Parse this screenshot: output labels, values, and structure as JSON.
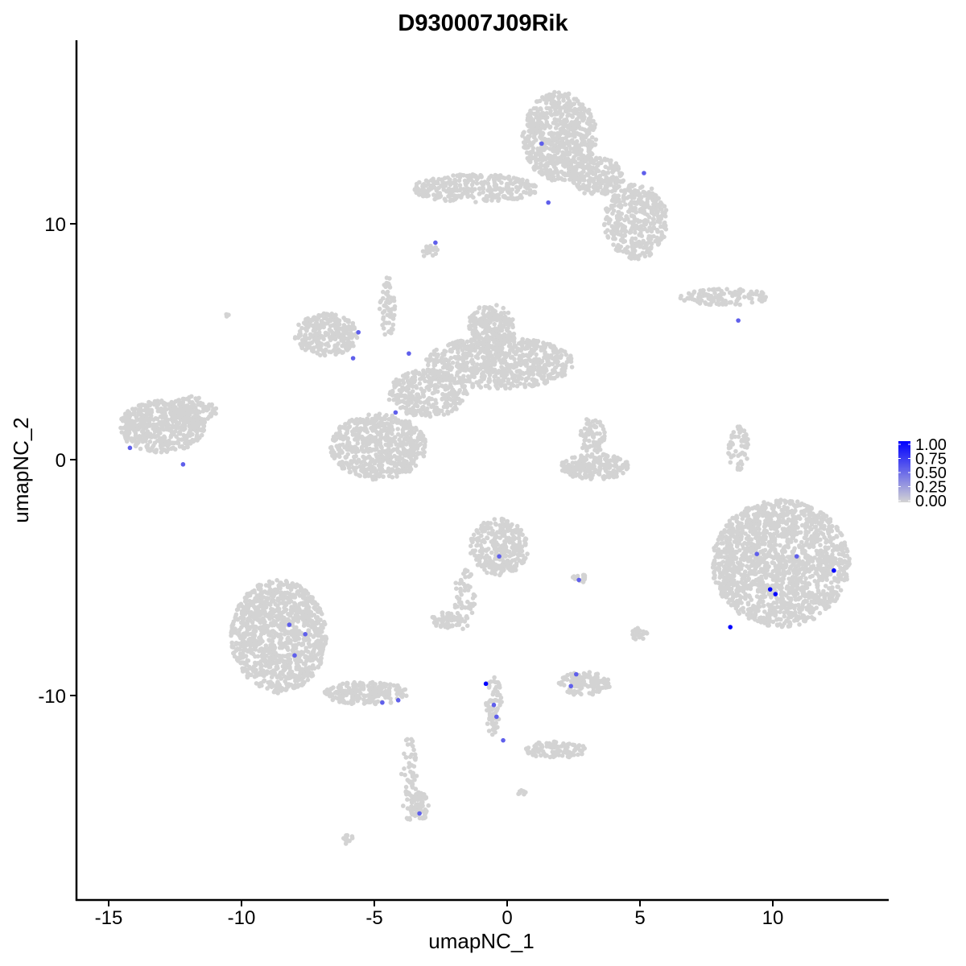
{
  "chart_data": {
    "type": "scatter",
    "title": "D930007J09Rik",
    "xlabel": "umapNC_1",
    "ylabel": "umapNC_2",
    "xlim": [
      -16.2,
      14.3
    ],
    "ylim": [
      -18.7,
      17.8
    ],
    "xticks": [
      -15,
      -10,
      -5,
      0,
      5,
      10
    ],
    "yticks": [
      -10,
      0,
      10
    ],
    "grid": false,
    "color_scale": {
      "low": "#d3d3d3",
      "high": "#0000ff",
      "min": 0,
      "max": 1
    },
    "legend": {
      "placement": "right",
      "labels": [
        "1.00",
        "0.75",
        "0.50",
        "0.25",
        "0.00"
      ]
    },
    "background_clusters": [
      {
        "cx": 1.97,
        "cy": 13.7,
        "rx": 1.4,
        "ry": 1.9,
        "n": 700
      },
      {
        "cx": 4.85,
        "cy": 10.1,
        "rx": 1.2,
        "ry": 1.6,
        "n": 380
      },
      {
        "cx": 3.4,
        "cy": 12.0,
        "rx": 1.0,
        "ry": 0.8,
        "n": 200
      },
      {
        "cx": -1.2,
        "cy": 11.5,
        "rx": 2.4,
        "ry": 0.6,
        "n": 300
      },
      {
        "cx": -2.9,
        "cy": 8.8,
        "rx": 0.3,
        "ry": 0.3,
        "n": 20
      },
      {
        "cx": 8.2,
        "cy": 6.9,
        "rx": 1.7,
        "ry": 0.35,
        "n": 120
      },
      {
        "cx": -6.8,
        "cy": 5.3,
        "rx": 1.2,
        "ry": 0.9,
        "n": 280
      },
      {
        "cx": -4.85,
        "cy": 0.55,
        "rx": 1.8,
        "ry": 1.4,
        "n": 600
      },
      {
        "cx": -0.3,
        "cy": 4.1,
        "rx": 2.8,
        "ry": 1.1,
        "n": 700
      },
      {
        "cx": -0.6,
        "cy": 5.6,
        "rx": 0.9,
        "ry": 1.0,
        "n": 250
      },
      {
        "cx": -3.0,
        "cy": 2.8,
        "rx": 1.5,
        "ry": 1.0,
        "n": 300
      },
      {
        "cx": -4.5,
        "cy": 6.5,
        "rx": 0.3,
        "ry": 1.3,
        "n": 60
      },
      {
        "cx": -13.0,
        "cy": 1.4,
        "rx": 1.6,
        "ry": 1.1,
        "n": 500
      },
      {
        "cx": -11.8,
        "cy": 2.1,
        "rx": 0.9,
        "ry": 0.6,
        "n": 120
      },
      {
        "cx": 3.3,
        "cy": -0.3,
        "rx": 1.3,
        "ry": 0.55,
        "n": 200
      },
      {
        "cx": 3.2,
        "cy": 1.0,
        "rx": 0.5,
        "ry": 0.8,
        "n": 70
      },
      {
        "cx": 8.7,
        "cy": 0.5,
        "rx": 0.4,
        "ry": 1.0,
        "n": 60
      },
      {
        "cx": 10.3,
        "cy": -4.4,
        "rx": 2.6,
        "ry": 2.7,
        "n": 1600
      },
      {
        "cx": -0.3,
        "cy": -3.7,
        "rx": 1.1,
        "ry": 1.2,
        "n": 300
      },
      {
        "cx": -1.6,
        "cy": -5.9,
        "rx": 0.4,
        "ry": 1.3,
        "n": 60
      },
      {
        "cx": -2.3,
        "cy": -6.8,
        "rx": 0.6,
        "ry": 0.35,
        "n": 60
      },
      {
        "cx": -8.6,
        "cy": -7.5,
        "rx": 1.8,
        "ry": 2.4,
        "n": 1100
      },
      {
        "cx": -5.3,
        "cy": -9.9,
        "rx": 1.6,
        "ry": 0.5,
        "n": 220
      },
      {
        "cx": -3.7,
        "cy": -13.5,
        "rx": 0.3,
        "ry": 1.8,
        "n": 60
      },
      {
        "cx": -3.3,
        "cy": -14.7,
        "rx": 0.35,
        "ry": 0.6,
        "n": 60
      },
      {
        "cx": -0.5,
        "cy": -10.5,
        "rx": 0.3,
        "ry": 1.3,
        "n": 70
      },
      {
        "cx": 1.8,
        "cy": -12.3,
        "rx": 1.2,
        "ry": 0.35,
        "n": 100
      },
      {
        "cx": 2.9,
        "cy": -9.5,
        "rx": 1.0,
        "ry": 0.5,
        "n": 130
      },
      {
        "cx": 2.8,
        "cy": -5.0,
        "rx": 0.4,
        "ry": 0.2,
        "n": 15
      },
      {
        "cx": 5.0,
        "cy": -7.4,
        "rx": 0.3,
        "ry": 0.3,
        "n": 20
      },
      {
        "cx": 0.55,
        "cy": -14.1,
        "rx": 0.2,
        "ry": 0.1,
        "n": 8
      },
      {
        "cx": -6.0,
        "cy": -16.1,
        "rx": 0.3,
        "ry": 0.2,
        "n": 12
      },
      {
        "cx": -10.5,
        "cy": 6.1,
        "rx": 0.1,
        "ry": 0.1,
        "n": 3
      }
    ],
    "expressed_points": [
      {
        "x": 1.3,
        "y": 13.4,
        "value": 0.55
      },
      {
        "x": 5.15,
        "y": 12.15,
        "value": 0.55
      },
      {
        "x": 1.55,
        "y": 10.9,
        "value": 0.55
      },
      {
        "x": -2.7,
        "y": 9.2,
        "value": 0.55
      },
      {
        "x": -5.6,
        "y": 5.4,
        "value": 0.55
      },
      {
        "x": -5.8,
        "y": 4.3,
        "value": 0.55
      },
      {
        "x": -3.7,
        "y": 4.5,
        "value": 0.55
      },
      {
        "x": -4.2,
        "y": 2.0,
        "value": 0.55
      },
      {
        "x": -14.2,
        "y": 0.5,
        "value": 0.55
      },
      {
        "x": -12.2,
        "y": -0.2,
        "value": 0.55
      },
      {
        "x": 8.7,
        "y": 5.9,
        "value": 0.55
      },
      {
        "x": -0.3,
        "y": -4.1,
        "value": 0.55
      },
      {
        "x": 2.7,
        "y": -5.1,
        "value": 0.55
      },
      {
        "x": 9.4,
        "y": -4.0,
        "value": 0.55
      },
      {
        "x": 10.9,
        "y": -4.1,
        "value": 0.55
      },
      {
        "x": 12.3,
        "y": -4.7,
        "value": 1.0
      },
      {
        "x": 9.9,
        "y": -5.5,
        "value": 1.0
      },
      {
        "x": 10.1,
        "y": -5.7,
        "value": 1.0
      },
      {
        "x": 8.4,
        "y": -7.1,
        "value": 1.0
      },
      {
        "x": -8.2,
        "y": -7.0,
        "value": 0.55
      },
      {
        "x": -7.6,
        "y": -7.4,
        "value": 0.55
      },
      {
        "x": -8.0,
        "y": -8.3,
        "value": 0.55
      },
      {
        "x": -4.7,
        "y": -10.3,
        "value": 0.55
      },
      {
        "x": -4.1,
        "y": -10.2,
        "value": 0.55
      },
      {
        "x": -0.8,
        "y": -9.5,
        "value": 1.0
      },
      {
        "x": -0.5,
        "y": -10.4,
        "value": 0.55
      },
      {
        "x": -0.4,
        "y": -10.9,
        "value": 0.55
      },
      {
        "x": -0.15,
        "y": -11.9,
        "value": 0.55
      },
      {
        "x": 2.6,
        "y": -9.1,
        "value": 0.55
      },
      {
        "x": 2.4,
        "y": -9.6,
        "value": 0.55
      },
      {
        "x": -3.3,
        "y": -15.0,
        "value": 0.55
      }
    ]
  }
}
